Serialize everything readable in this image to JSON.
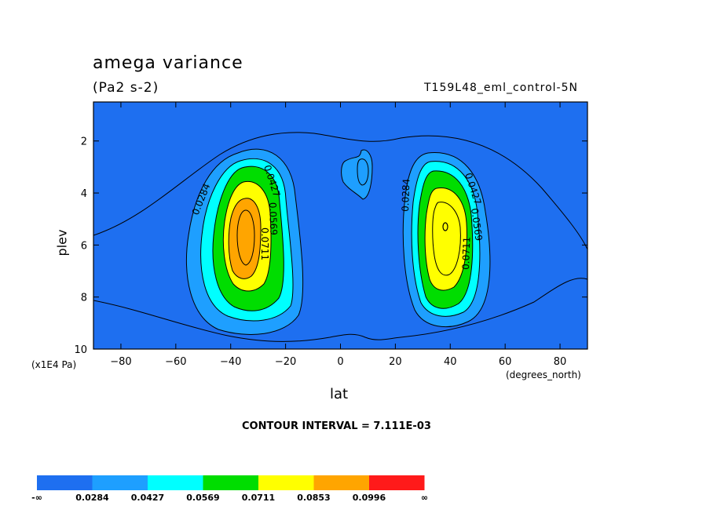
{
  "title": "amega variance",
  "units": "(Pa2 s-2)",
  "run_label": "T159L48_eml_control-5N",
  "contour_interval_text": "CONTOUR INTERVAL = 7.111E-03",
  "chart_data": {
    "type": "contour",
    "title": "amega variance",
    "subtitle": "(Pa2 s-2)",
    "xlabel": "lat",
    "x_units": "(degrees_north)",
    "ylabel": "plev",
    "y_units": "(x1E4 Pa)",
    "xlim": [
      -90,
      90
    ],
    "ylim": [
      10,
      0.5
    ],
    "x_ticks": [
      -80,
      -60,
      -40,
      -20,
      0,
      20,
      40,
      60,
      80
    ],
    "y_ticks": [
      2,
      4,
      6,
      8,
      10
    ],
    "contour_interval": 0.007111,
    "contour_labels": [
      "0.0284",
      "0.0427",
      "0.0569",
      "0.0711"
    ],
    "colorbar": {
      "boundaries": [
        "-∞",
        "0.0284",
        "0.0427",
        "0.0569",
        "0.0711",
        "0.0853",
        "0.0996",
        "∞"
      ],
      "colors": [
        "#1e6ff0",
        "#1e9fff",
        "#00ffff",
        "#00dd00",
        "#ffff00",
        "#ffa500",
        "#ff1a1a"
      ]
    },
    "features": [
      {
        "lat": -34,
        "plev": 5.5,
        "peak_range": "0.0853-0.0996"
      },
      {
        "lat": 38,
        "plev": 5.0,
        "peak_range": "0.0711-0.0853"
      },
      {
        "lat": 8,
        "plev": 2.8,
        "peak_range": "0.0284-0.0427"
      }
    ]
  }
}
